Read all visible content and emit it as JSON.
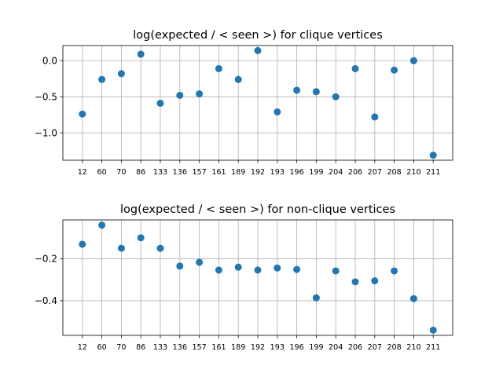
{
  "chart_data": [
    {
      "type": "scatter",
      "title": "log(expected / < seen >) for clique vertices",
      "xlabel": "",
      "ylabel": "",
      "categories": [
        "12",
        "60",
        "70",
        "86",
        "133",
        "136",
        "157",
        "161",
        "189",
        "192",
        "193",
        "196",
        "199",
        "204",
        "206",
        "207",
        "208",
        "210",
        "211"
      ],
      "values": [
        -0.74,
        -0.26,
        -0.18,
        0.09,
        -0.59,
        -0.48,
        -0.46,
        -0.11,
        -0.26,
        0.14,
        -0.71,
        -0.41,
        -0.43,
        -0.5,
        -0.11,
        -0.78,
        -0.13,
        0.0,
        -1.31
      ],
      "ylim": [
        -1.38,
        0.21
      ],
      "yticks": [
        0.0,
        -0.5,
        -1.0
      ],
      "ytick_labels": [
        "0.0",
        "−0.5",
        "−1.0"
      ],
      "grid": true,
      "color": "#1f77b4"
    },
    {
      "type": "scatter",
      "title": "log(expected / < seen >) for non-clique vertices",
      "xlabel": "",
      "ylabel": "",
      "categories": [
        "12",
        "60",
        "70",
        "86",
        "133",
        "136",
        "157",
        "161",
        "189",
        "192",
        "193",
        "196",
        "199",
        "204",
        "206",
        "207",
        "208",
        "210",
        "211"
      ],
      "values": [
        -0.131,
        -0.04,
        -0.15,
        -0.1,
        -0.15,
        -0.235,
        -0.217,
        -0.254,
        -0.24,
        -0.254,
        -0.244,
        -0.251,
        -0.386,
        -0.258,
        -0.31,
        -0.305,
        -0.258,
        -0.39,
        -0.54
      ],
      "ylim": [
        -0.565,
        -0.015
      ],
      "yticks": [
        -0.2,
        -0.4
      ],
      "ytick_labels": [
        "−0.2",
        "−0.4"
      ],
      "grid": true,
      "color": "#1f77b4"
    }
  ]
}
